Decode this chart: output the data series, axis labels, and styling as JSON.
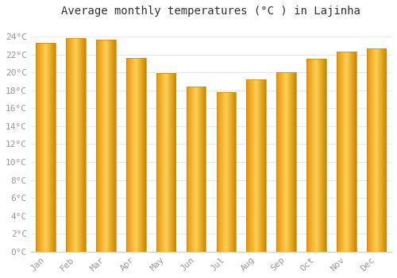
{
  "title": "Average monthly temperatures (°C ) in Lajinha",
  "months": [
    "Jan",
    "Feb",
    "Mar",
    "Apr",
    "May",
    "Jun",
    "Jul",
    "Aug",
    "Sep",
    "Oct",
    "Nov",
    "Dec"
  ],
  "values": [
    23.3,
    23.8,
    23.6,
    21.6,
    19.9,
    18.4,
    17.8,
    19.2,
    20.0,
    21.5,
    22.3,
    22.7
  ],
  "bar_color_left": "#F5A800",
  "bar_color_center": "#FFD966",
  "bar_color_right": "#E8940A",
  "bar_edge_color": "#CC8800",
  "background_color": "#ffffff",
  "grid_color": "#e8e8e8",
  "ytick_labels": [
    "0°C",
    "2°C",
    "4°C",
    "6°C",
    "8°C",
    "10°C",
    "12°C",
    "14°C",
    "16°C",
    "18°C",
    "20°C",
    "22°C",
    "24°C"
  ],
  "ytick_values": [
    0,
    2,
    4,
    6,
    8,
    10,
    12,
    14,
    16,
    18,
    20,
    22,
    24
  ],
  "ylim": [
    0,
    25.5
  ],
  "title_fontsize": 10,
  "tick_fontsize": 8,
  "tick_color": "#999999",
  "font_family": "monospace"
}
